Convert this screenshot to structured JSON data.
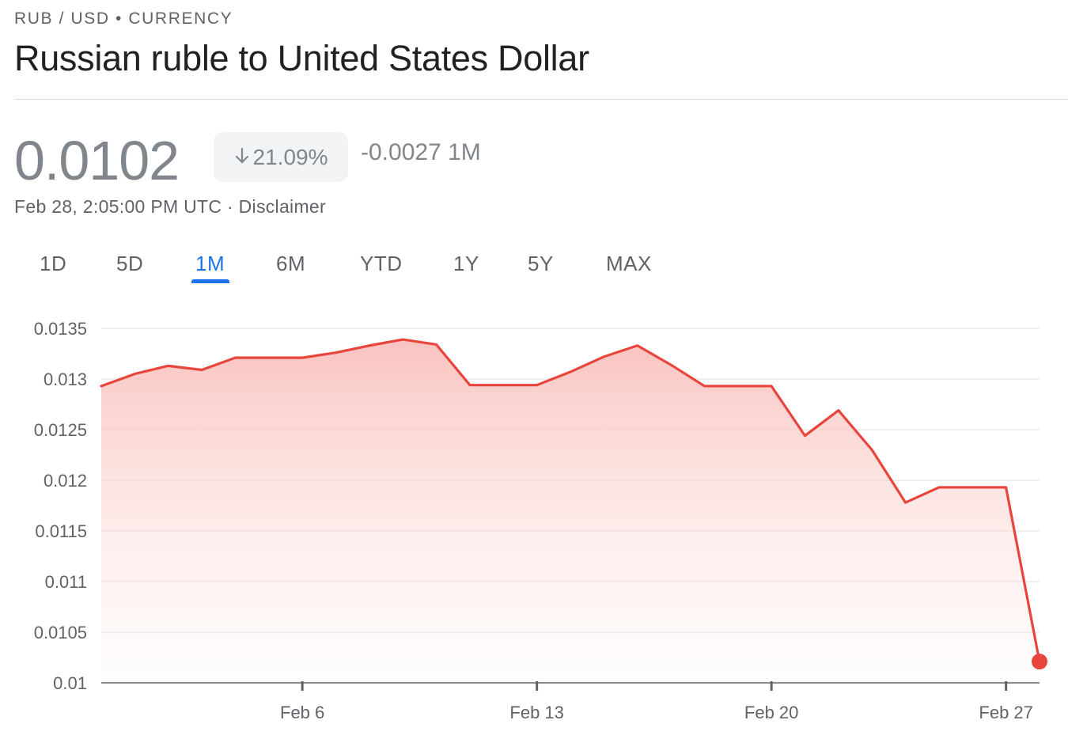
{
  "header": {
    "pair_line": "RUB / USD • CURRENCY",
    "title": "Russian ruble to United States Dollar"
  },
  "quote": {
    "price": "0.0102",
    "change_pct": "21.09%",
    "change_abs": "-0.0027 1M",
    "timestamp": "Feb 28, 2:05:00 PM UTC",
    "disclaimer": "Disclaimer"
  },
  "tabs": [
    {
      "label": "1D",
      "active": false
    },
    {
      "label": "5D",
      "active": false
    },
    {
      "label": "1M",
      "active": true
    },
    {
      "label": "6M",
      "active": false
    },
    {
      "label": "YTD",
      "active": false
    },
    {
      "label": "1Y",
      "active": false
    },
    {
      "label": "5Y",
      "active": false
    },
    {
      "label": "MAX",
      "active": false
    }
  ],
  "colors": {
    "line": "#e8453c",
    "accent": "#1a73e8",
    "muted": "#80868b"
  },
  "chart_data": {
    "type": "area",
    "x": [
      "Jan 31",
      "Feb 1",
      "Feb 2",
      "Feb 3",
      "Feb 4",
      "Feb 5",
      "Feb 6",
      "Feb 7",
      "Feb 8",
      "Feb 9",
      "Feb 10",
      "Feb 11",
      "Feb 12",
      "Feb 13",
      "Feb 14",
      "Feb 15",
      "Feb 16",
      "Feb 17",
      "Feb 18",
      "Feb 19",
      "Feb 20",
      "Feb 21",
      "Feb 22",
      "Feb 23",
      "Feb 24",
      "Feb 25",
      "Feb 26",
      "Feb 27",
      "Feb 28"
    ],
    "series": [
      {
        "values": [
          0.01293,
          0.01305,
          0.01313,
          0.01309,
          0.01321,
          0.01321,
          0.01321,
          0.01326,
          0.01333,
          0.01339,
          0.01334,
          0.01294,
          0.01294,
          0.01294,
          0.01307,
          0.01322,
          0.01333,
          0.01314,
          0.01293,
          0.01293,
          0.01293,
          0.01244,
          0.01269,
          0.0123,
          0.01178,
          0.01193,
          0.01193,
          0.01193,
          0.01021
        ]
      }
    ],
    "x_ticks": [
      "Feb 6",
      "Feb 13",
      "Feb 20",
      "Feb 27"
    ],
    "y_ticks": [
      "0.0135",
      "0.013",
      "0.0125",
      "0.012",
      "0.0115",
      "0.011",
      "0.0105",
      "0.01"
    ],
    "ylim": [
      0.01,
      0.0135
    ],
    "grid": true,
    "last_point_marker": true
  }
}
